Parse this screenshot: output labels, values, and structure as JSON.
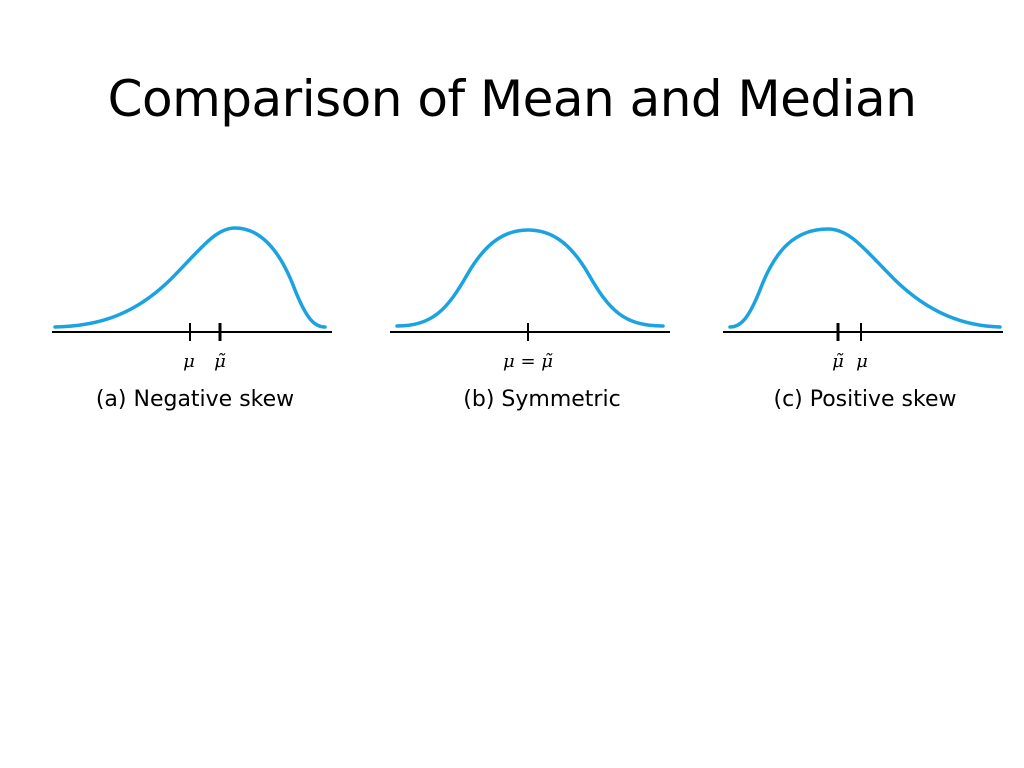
{
  "slide": {
    "title": "Comparison of Mean and Median"
  },
  "panels": [
    {
      "caption": "(a) Negative skew",
      "skew": "negative",
      "label_left": "μ",
      "label_right": "μ̃"
    },
    {
      "caption": "(b) Symmetric",
      "skew": "none",
      "label_center": "μ = μ̃"
    },
    {
      "caption": "(c) Positive skew",
      "skew": "positive",
      "label_left": "μ̃",
      "label_right": "μ"
    }
  ],
  "colors": {
    "curve": "#1aa3e0",
    "axis": "#000000"
  }
}
